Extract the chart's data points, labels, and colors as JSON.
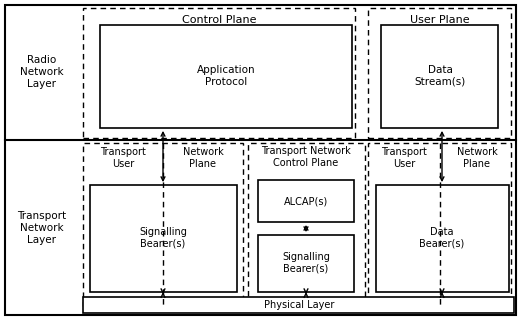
{
  "fig_width": 5.21,
  "fig_height": 3.2,
  "dpi": 100,
  "bg_color": "#ffffff",
  "radio_network_label": "Radio\nNetwork\nLayer",
  "transport_network_label": "Transport\nNetwork\nLayer",
  "control_plane_label": "Control Plane",
  "user_plane_label": "User Plane",
  "tncp_label": "Transport Network\nControl Plane",
  "tu_left_label": "Transport\nUser",
  "np_left_label": "Network\nPlane",
  "tu_right_label": "Transport\nUser",
  "np_right_label": "Network\nPlane",
  "app_proto_label": "Application\nProtocol",
  "data_stream_label": "Data\nStream(s)",
  "alcap_label": "ALCAP(s)",
  "sig_bearer_left_label": "Signalling\nBearer(s)",
  "sig_bearer_mid_label": "Signalling\nBearer(s)",
  "data_bearer_label": "Data\nBearer(s)",
  "physical_layer_label": "Physical Layer",
  "font_size_title": 8,
  "font_size_label": 7.5,
  "font_size_small": 7,
  "font_family": "DejaVu Sans"
}
